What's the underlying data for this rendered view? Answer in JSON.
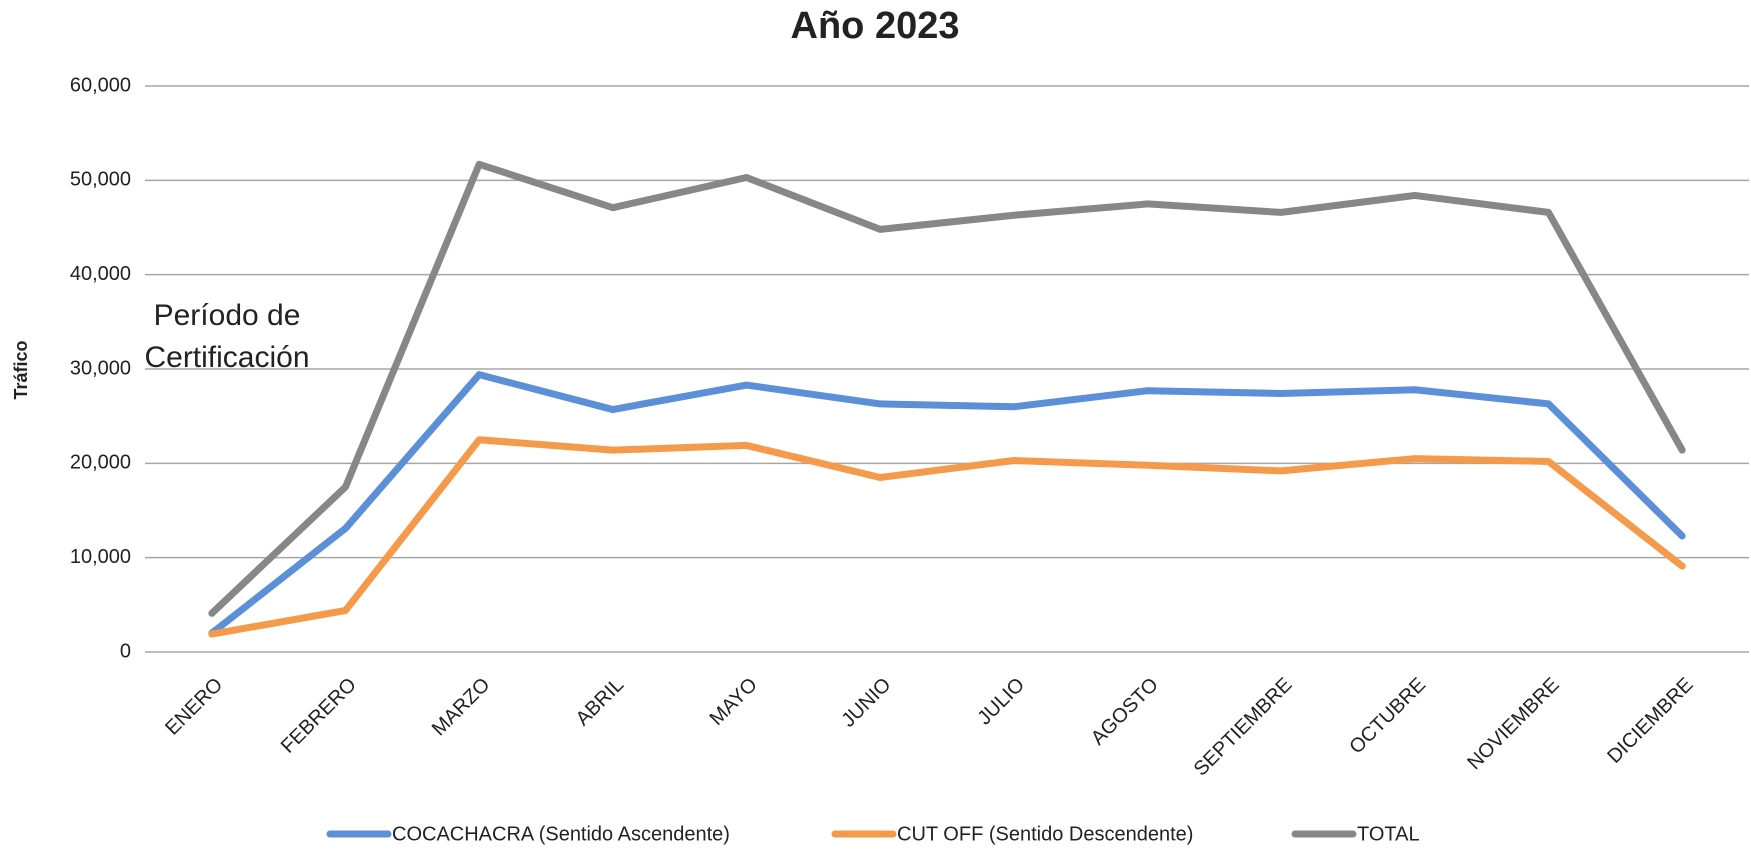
{
  "chart_data": {
    "type": "line",
    "title": "Año 2023",
    "y_label": "Tráfico",
    "annotation": "Período de Certificación",
    "categories": [
      "ENERO",
      "FEBRERO",
      "MARZO",
      "ABRIL",
      "MAYO",
      "JUNIO",
      "JULIO",
      "AGOSTO",
      "SEPTIEMBRE",
      "OCTUBRE",
      "NOVIEMBRE",
      "DICIEMBRE"
    ],
    "series": [
      {
        "name": "COCACHACRA (Sentido Ascendente)",
        "color": "#5b8fd8",
        "values": [
          2000,
          13100,
          29400,
          25700,
          28300,
          26300,
          26000,
          27700,
          27400,
          27800,
          26300,
          12300
        ]
      },
      {
        "name": "CUT OFF (Sentido Descendente)",
        "color": "#f59a4a",
        "values": [
          1900,
          4400,
          22500,
          21400,
          21900,
          18500,
          20300,
          19800,
          19200,
          20500,
          20200,
          9100
        ]
      },
      {
        "name": "TOTAL",
        "color": "#878787",
        "values": [
          4100,
          17500,
          51700,
          47100,
          50300,
          44800,
          46300,
          47500,
          46600,
          48400,
          46600,
          21400
        ]
      }
    ],
    "ylim": [
      0,
      60000
    ],
    "yticks": [
      0,
      {
        "value": 10000,
        "label": "10,000"
      },
      {
        "value": 20000,
        "label": "20,000"
      },
      {
        "value": 30000,
        "label": "30,000"
      },
      {
        "value": 40000,
        "label": "40,000"
      },
      {
        "value": 50000,
        "label": "50,000"
      },
      {
        "value": 60000,
        "label": "60,000"
      }
    ],
    "grid": true,
    "legend": "bottom"
  }
}
